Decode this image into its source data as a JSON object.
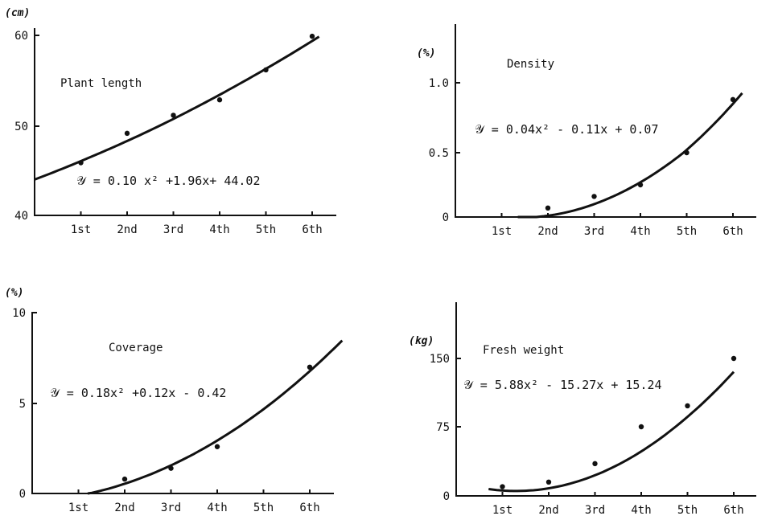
{
  "chart_data": [
    {
      "type": "scatter",
      "title": "Plant length",
      "ylabel": "(cm)",
      "equation": "𝒴 = 0.10 x² +1.96x+ 44.02",
      "categories": [
        "1st",
        "2nd",
        "3rd",
        "4th",
        "5th",
        "6th"
      ],
      "y_ticks": [
        "40",
        "50",
        "60"
      ],
      "ylim": [
        40,
        60.5
      ],
      "points": [
        {
          "x": 1,
          "y": 45.9
        },
        {
          "x": 2,
          "y": 49.2
        },
        {
          "x": 3,
          "y": 51.2
        },
        {
          "x": 4,
          "y": 52.9
        },
        {
          "x": 5,
          "y": 56.2
        },
        {
          "x": 6,
          "y": 59.9
        }
      ],
      "fit": {
        "a": 0.1,
        "b": 1.96,
        "c": 44.02,
        "x_range": [
          0,
          6.15
        ]
      }
    },
    {
      "type": "scatter",
      "title": "Density",
      "ylabel": "(%)",
      "equation": "𝒴 = 0.04x² - 0.11x + 0.07",
      "categories": [
        "1st",
        "2nd",
        "3rd",
        "4th",
        "5th",
        "6th"
      ],
      "y_ticks": [
        "0",
        "0.5",
        "1.0"
      ],
      "ylim": [
        0,
        1.0
      ],
      "points": [
        {
          "x": 2,
          "y": 0.07
        },
        {
          "x": 3,
          "y": 0.16
        },
        {
          "x": 4,
          "y": 0.25
        },
        {
          "x": 5,
          "y": 0.5
        },
        {
          "x": 6,
          "y": 0.88
        }
      ],
      "fit": {
        "a": 0.04,
        "b": -0.11,
        "c": 0.07,
        "x_range": [
          1.35,
          6.2
        ]
      }
    },
    {
      "type": "scatter",
      "title": "Coverage",
      "ylabel": "(%)",
      "equation": "𝒴 = 0.18x² +0.12x - 0.42",
      "categories": [
        "1st",
        "2nd",
        "3rd",
        "4th",
        "5th",
        "6th"
      ],
      "y_ticks": [
        "0",
        "5",
        "10"
      ],
      "ylim": [
        0,
        10
      ],
      "points": [
        {
          "x": 2,
          "y": 0.8
        },
        {
          "x": 3,
          "y": 1.4
        },
        {
          "x": 4,
          "y": 2.6
        },
        {
          "x": 6,
          "y": 7.0
        }
      ],
      "fit": {
        "a": 0.18,
        "b": 0.12,
        "c": -0.42,
        "x_range": [
          1.2,
          6.7
        ]
      }
    },
    {
      "type": "scatter",
      "title": "Fresh weight",
      "ylabel": "(kg)",
      "equation": "𝒴 = 5.88x² - 15.27x + 15.24",
      "categories": [
        "1st",
        "2nd",
        "3rd",
        "4th",
        "5th",
        "6th"
      ],
      "y_ticks": [
        "0",
        "75",
        "150"
      ],
      "ylim": [
        0,
        150
      ],
      "points": [
        {
          "x": 1,
          "y": 10
        },
        {
          "x": 2,
          "y": 15
        },
        {
          "x": 3,
          "y": 35
        },
        {
          "x": 4,
          "y": 75
        },
        {
          "x": 5,
          "y": 98
        },
        {
          "x": 6,
          "y": 150
        }
      ],
      "fit": {
        "a": 5.88,
        "b": -15.27,
        "c": 15.24,
        "x_range": [
          0.7,
          6.0
        ]
      }
    }
  ]
}
